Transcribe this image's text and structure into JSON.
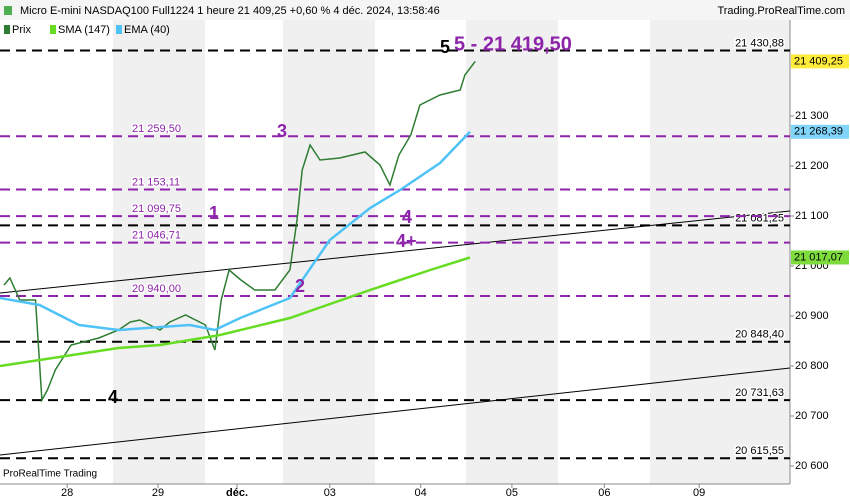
{
  "header": {
    "title": "Micro E-mini NASDAQ100 Full1224 1 heure 21 409,25 +0,60 % 4 déc. 2024, 13:58:46",
    "site": "Trading.ProRealTime.com",
    "footer": "ProRealTime Trading"
  },
  "chart_data": {
    "type": "line",
    "xlim": [
      0,
      200
    ],
    "ylim": [
      20564,
      21492
    ],
    "xticks": [
      {
        "value": 17,
        "label": "28"
      },
      {
        "value": 40,
        "label": "29"
      },
      {
        "value": 60,
        "label": "déc."
      },
      {
        "value": 83.5,
        "label": "03"
      },
      {
        "value": 106.5,
        "label": "04"
      },
      {
        "value": 129.6,
        "label": "05"
      },
      {
        "value": 153,
        "label": "06"
      },
      {
        "value": 177,
        "label": "09"
      }
    ],
    "yticks": [
      {
        "value": 20600,
        "label": "20 600"
      },
      {
        "value": 20700,
        "label": "20 700"
      },
      {
        "value": 20800,
        "label": "20 800"
      },
      {
        "value": 20900,
        "label": "20 900"
      },
      {
        "value": 21000,
        "label": "21 000"
      },
      {
        "value": 21100,
        "label": "21 100"
      },
      {
        "value": 21200,
        "label": "21 200"
      },
      {
        "value": 21300,
        "label": "21 300"
      }
    ],
    "series": [
      {
        "name": "Prix",
        "color": "#2e7d32",
        "last_label": "21 409,25",
        "tag_color": "#ffeb3b",
        "x": [
          1,
          2.5,
          5,
          9,
          10.6,
          12,
          14,
          18,
          25,
          30,
          33,
          35.4,
          40.5,
          43,
          47,
          52,
          54.4,
          56,
          58,
          61,
          64.5,
          69.6,
          73.4,
          75.2,
          76.5,
          78.5,
          81,
          86,
          92.4,
          96.2,
          98.7,
          101,
          104,
          106.3,
          111.4,
          116.5,
          117.7,
          120.3
        ],
        "values": [
          20962,
          20976,
          20932,
          20932,
          20732,
          20752,
          20792,
          20842,
          20856,
          20872,
          20888,
          20892,
          20872,
          20888,
          20902,
          20882,
          20832,
          20932,
          20992,
          20972,
          20952,
          20952,
          20992,
          21092,
          21192,
          21242,
          21212,
          21216,
          21228,
          21202,
          21162,
          21222,
          21262,
          21322,
          21342,
          21352,
          21382,
          21409.25
        ]
      },
      {
        "name": "SMA (147)",
        "color": "#66dd22",
        "last_label": "21 017,07",
        "tag_color": "#7ddc3c",
        "x": [
          0,
          30,
          40.5,
          55.7,
          73.4,
          93.7,
          108.9,
          119
        ],
        "values": [
          20800,
          20836,
          20842,
          20862,
          20896,
          20952,
          20992,
          21017.07
        ]
      },
      {
        "name": "EMA (40)",
        "color": "#4fc3f7",
        "last_label": "21 268,39",
        "tag_color": "#81d4fa",
        "x": [
          0,
          10,
          20,
          30,
          48,
          54.4,
          60.8,
          73.4,
          83.5,
          93.7,
          101.3,
          111.4,
          119
        ],
        "values": [
          20936,
          20922,
          20882,
          20872,
          20882,
          20872,
          20896,
          20936,
          21052,
          21116,
          21152,
          21206,
          21268.39
        ]
      }
    ],
    "levels": [
      {
        "value": 21430.88,
        "label": "21 430,88",
        "color": "#000000"
      },
      {
        "value": 21081.25,
        "label": "21 081,25",
        "color": "#000000"
      },
      {
        "value": 20848.4,
        "label": "20 848,40",
        "color": "#000000"
      },
      {
        "value": 20731.63,
        "label": "20 731,63",
        "color": "#000000"
      },
      {
        "value": 20615.55,
        "label": "20 615,55",
        "color": "#000000"
      },
      {
        "value": 21259.5,
        "label": "21 259,50",
        "color": "#8e24aa"
      },
      {
        "value": 21153.11,
        "label": "21 153,11",
        "color": "#8e24aa"
      },
      {
        "value": 21099.75,
        "label": "21 099,75",
        "color": "#8e24aa"
      },
      {
        "value": 21046.71,
        "label": "21 046,71",
        "color": "#8e24aa"
      },
      {
        "value": 20940.0,
        "label": "20 940,00",
        "color": "#8e24aa"
      }
    ],
    "annotations": [
      "5",
      "5 - 21 419,50",
      "3",
      "1",
      "4",
      "4+",
      "2",
      "4"
    ]
  }
}
